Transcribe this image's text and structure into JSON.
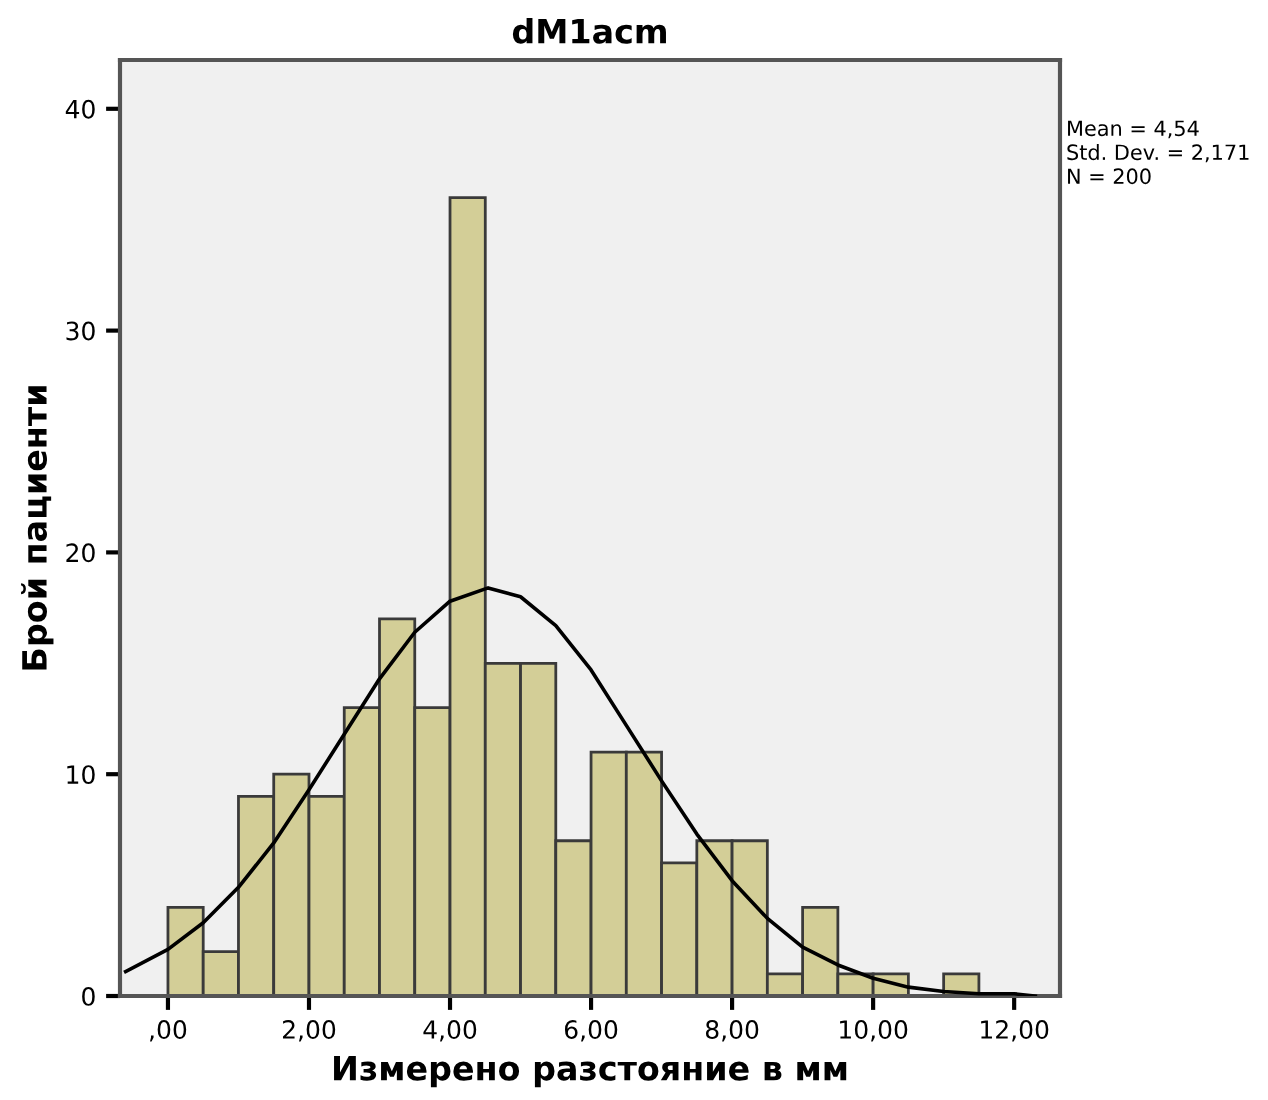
{
  "chart_data": {
    "type": "histogram",
    "title": "dM1acm",
    "xlabel": "Измерено разстояние в мм",
    "ylabel": "Брой пациенти",
    "bins": [
      0,
      0.5,
      1,
      1.5,
      2,
      2.5,
      3,
      3.5,
      4,
      4.5,
      5,
      5.5,
      6,
      6.5,
      7,
      7.5,
      8,
      8.5,
      9,
      9.5,
      10,
      10.5,
      11,
      11.5
    ],
    "values": [
      4,
      2,
      9,
      10,
      9,
      13,
      17,
      13,
      36,
      15,
      15,
      7,
      11,
      11,
      6,
      7,
      7,
      1,
      4,
      1,
      1,
      0,
      1
    ],
    "color": "#d3ce97",
    "series": [
      {
        "type": "line",
        "color": "#000000",
        "x": [
          -0.6,
          0,
          0.5,
          1,
          1.5,
          2,
          2.5,
          3,
          3.5,
          4,
          4.54,
          5,
          5.5,
          6,
          6.5,
          7,
          7.5,
          8,
          8.5,
          9,
          9.5,
          10,
          10.5,
          11,
          11.5,
          12,
          12.3
        ],
        "values": [
          1.1,
          2.1,
          3.3,
          4.9,
          6.9,
          9.3,
          11.8,
          14.3,
          16.4,
          17.8,
          18.4,
          18.0,
          16.7,
          14.7,
          12.2,
          9.7,
          7.3,
          5.2,
          3.5,
          2.2,
          1.4,
          0.8,
          0.4,
          0.2,
          0.1,
          0.1,
          0.0
        ]
      }
    ],
    "xlim": [
      -0.68,
      12.65
    ],
    "ylim": [
      0,
      42.2
    ],
    "xticks": [
      {
        "value": 0,
        "label": ",00"
      },
      {
        "value": 2,
        "label": "2,00"
      },
      {
        "value": 4,
        "label": "4,00"
      },
      {
        "value": 6,
        "label": "6,00"
      },
      {
        "value": 8,
        "label": "8,00"
      },
      {
        "value": 10,
        "label": "10,00"
      },
      {
        "value": 12,
        "label": "12,00"
      }
    ],
    "yticks": [
      0,
      10,
      20,
      30,
      40
    ],
    "grid": false,
    "legend": false,
    "annotations": [
      "Mean = 4,54",
      "Std. Dev. = 2,171",
      "N = 200"
    ]
  }
}
